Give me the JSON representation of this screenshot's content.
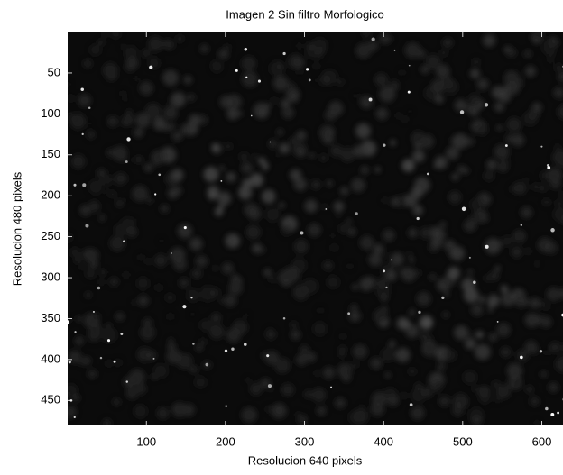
{
  "chart_data": {
    "type": "image",
    "title": "Imagen 2 Sin filtro Morfologico",
    "x_label": "Resolucion 640 pixels",
    "y_label": "Resolucion 480 pixels",
    "xlim": [
      0.5,
      640.5
    ],
    "ylim": [
      0.5,
      480.5
    ],
    "y_reversed": true,
    "xticks": [
      100,
      200,
      300,
      400,
      500,
      600
    ],
    "yticks": [
      50,
      100,
      150,
      200,
      250,
      300,
      350,
      400,
      450
    ],
    "colormap": "gray"
  }
}
